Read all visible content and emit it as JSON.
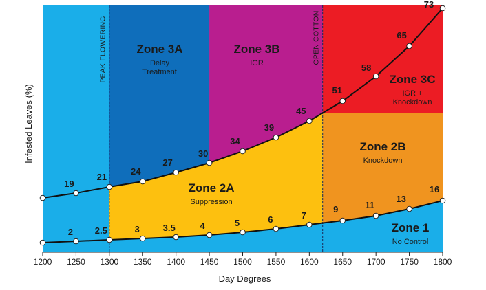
{
  "chart_data": {
    "type": "line",
    "title": "",
    "xlabel": "Day Degrees",
    "ylabel": "Infested Leaves (%)",
    "xlim": [
      1200,
      1800
    ],
    "ylim": [
      0,
      73
    ],
    "x_ticks": [
      "1200",
      "1250",
      "1300",
      "1350",
      "1400",
      "1450",
      "1500",
      "1550",
      "1600",
      "1650",
      "1700",
      "1750",
      "1800"
    ],
    "grid": false,
    "legend": "none",
    "series": [
      {
        "key": "lower",
        "color": "#111111",
        "x": [
          1200,
          1250,
          1300,
          1350,
          1400,
          1450,
          1500,
          1550,
          1600,
          1650,
          1700,
          1750,
          1800
        ],
        "labels": [
          "",
          "2",
          "2.5",
          "3",
          "3.5",
          "4",
          "5",
          "6",
          "7",
          "9",
          "11",
          "13",
          "16"
        ]
      },
      {
        "key": "upper",
        "color": "#111111",
        "x": [
          1200,
          1250,
          1300,
          1350,
          1400,
          1450,
          1500,
          1550,
          1600,
          1650,
          1700,
          1750,
          1800
        ],
        "labels": [
          "",
          "19",
          "21",
          "24",
          "27",
          "30",
          "34",
          "39",
          "45",
          "51",
          "58",
          "65",
          "73"
        ]
      }
    ],
    "vertical_markers": [
      {
        "x": 1300,
        "label": "PEAK FLOWERING"
      },
      {
        "x": 1620,
        "label": "OPEN COTTON"
      }
    ],
    "zones": [
      {
        "key": "z1",
        "title": "Zone 1",
        "subtitle": "No Control",
        "color": "#1aaee9"
      },
      {
        "key": "z2a",
        "title": "Zone 2A",
        "subtitle": "Suppression",
        "color": "#fdc00f"
      },
      {
        "key": "z2b",
        "title": "Zone 2B",
        "subtitle": "Knockdown",
        "color": "#f0941f"
      },
      {
        "key": "z3a",
        "title": "Zone 3A",
        "subtitle": "Delay Treatment",
        "color": "#0f6ebb"
      },
      {
        "key": "z3b",
        "title": "Zone 3B",
        "subtitle": "IGR",
        "color": "#b91e8f"
      },
      {
        "key": "z3c",
        "title": "Zone 3C",
        "subtitle": "IGR + Knockdown",
        "color": "#ec1c24"
      }
    ],
    "background_color": "#1aaee9"
  }
}
